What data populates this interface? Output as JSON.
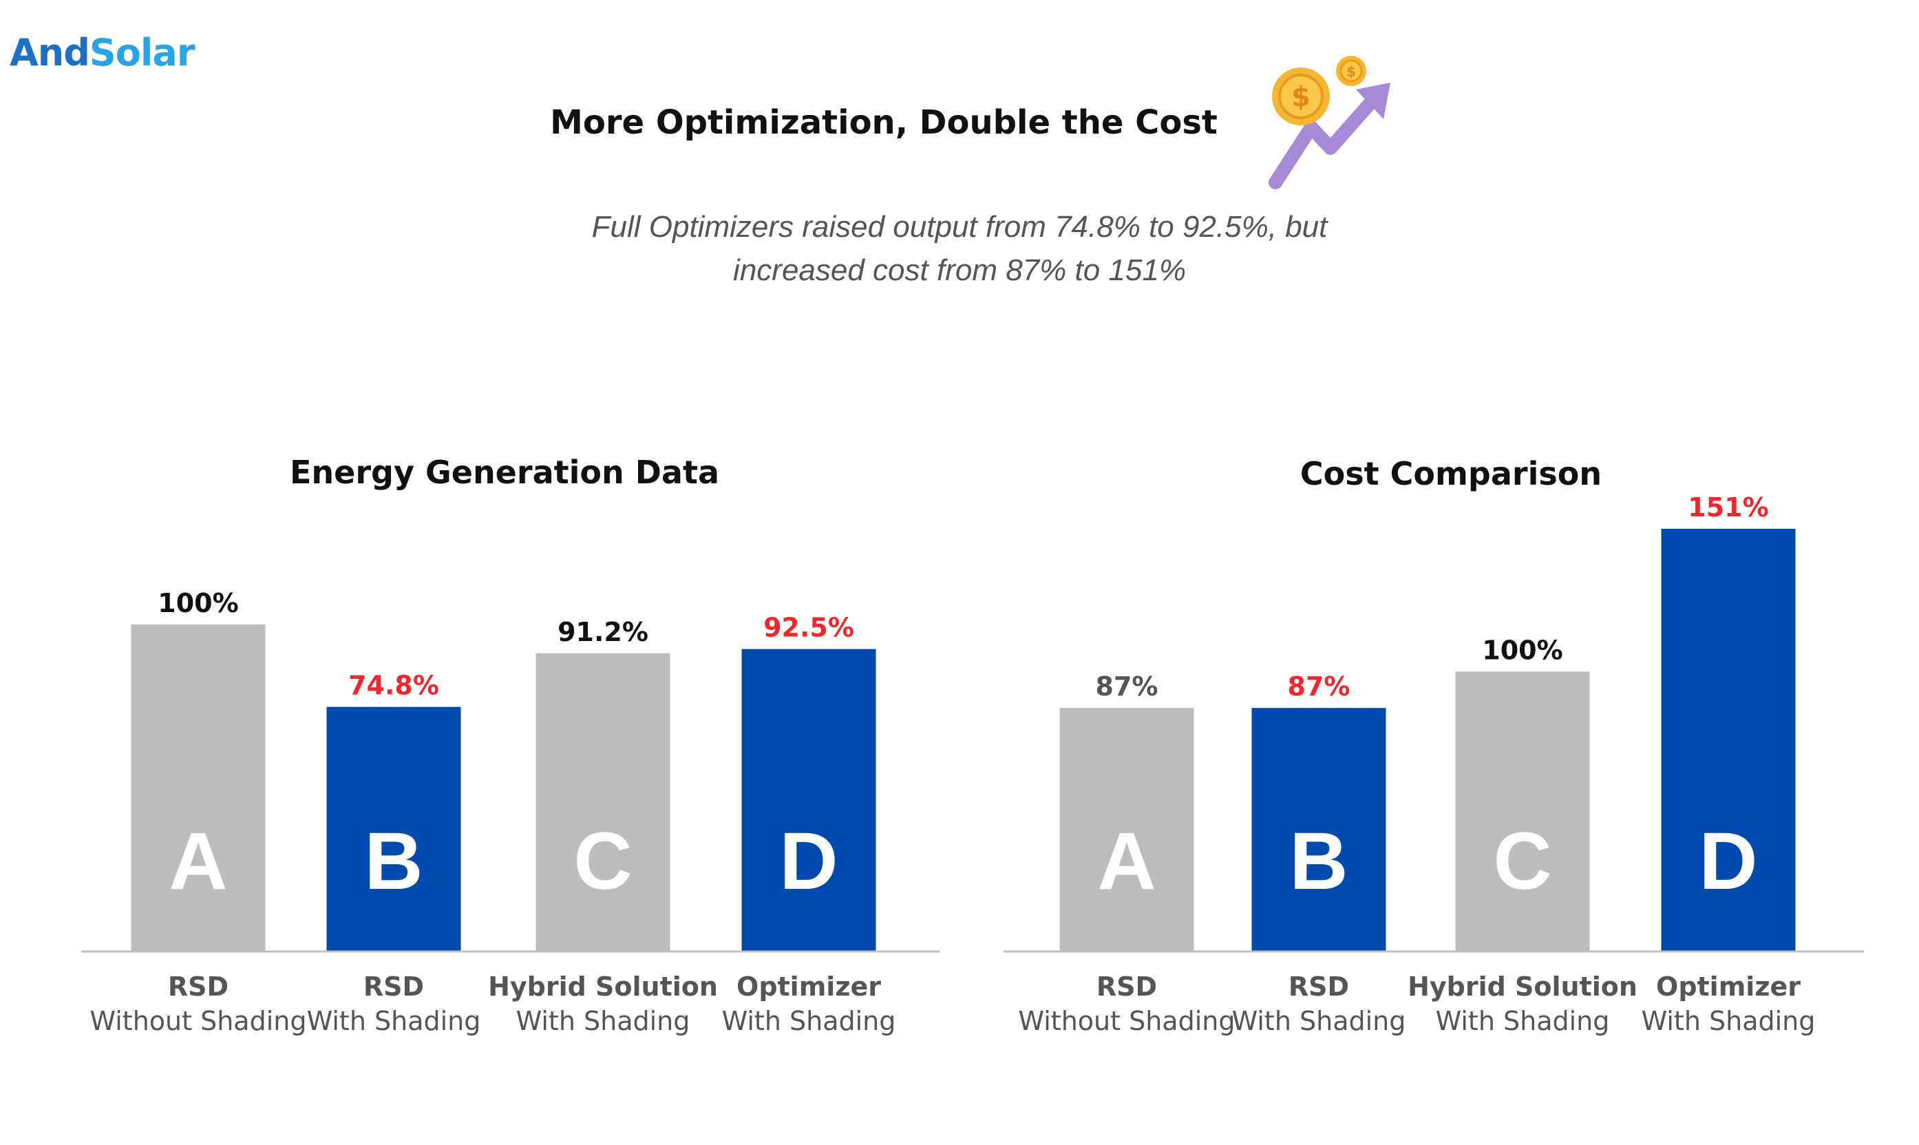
{
  "logo": {
    "part1": "And",
    "part2": "Solar"
  },
  "header": {
    "title": "More Optimization, Double the Cost",
    "subtitle_line1": "Full Optimizers raised output from 74.8% to 92.5%, but",
    "subtitle_line2": "increased cost from 87% to 151%"
  },
  "icons": {
    "title_icon": "money-growth-arrow-icon"
  },
  "colors": {
    "gray": "#bdbdbd",
    "blue": "#004aad",
    "red_label": "#f0282d",
    "dark_label": "#111111",
    "gray_label": "#555555",
    "axis": "#bfbfbf"
  },
  "chart_data": [
    {
      "type": "bar",
      "title": "Energy Generation Data",
      "categories": [
        {
          "letter": "A",
          "name": "RSD",
          "sub": "Without Shading",
          "value": 100,
          "label": "100%",
          "color": "gray",
          "label_color": "dark"
        },
        {
          "letter": "B",
          "name": "RSD",
          "sub": "With Shading",
          "value": 74.8,
          "label": "74.8%",
          "color": "blue",
          "label_color": "red"
        },
        {
          "letter": "C",
          "name": "Hybrid Solution",
          "sub": "With Shading",
          "value": 91.2,
          "label": "91.2%",
          "color": "gray",
          "label_color": "dark"
        },
        {
          "letter": "D",
          "name": "Optimizer",
          "sub": "With Shading",
          "value": 92.5,
          "label": "92.5%",
          "color": "blue",
          "label_color": "red"
        }
      ],
      "ylim": [
        0,
        100
      ]
    },
    {
      "type": "bar",
      "title": "Cost Comparison",
      "categories": [
        {
          "letter": "A",
          "name": "RSD",
          "sub": "Without Shading",
          "value": 87,
          "label": "87%",
          "color": "gray",
          "label_color": "gray"
        },
        {
          "letter": "B",
          "name": "RSD",
          "sub": "With Shading",
          "value": 87,
          "label": "87%",
          "color": "blue",
          "label_color": "red"
        },
        {
          "letter": "C",
          "name": "Hybrid Solution",
          "sub": "With Shading",
          "value": 100,
          "label": "100%",
          "color": "gray",
          "label_color": "dark"
        },
        {
          "letter": "D",
          "name": "Optimizer",
          "sub": "With Shading",
          "value": 151,
          "label": "151%",
          "color": "blue",
          "label_color": "red"
        }
      ],
      "ylim": [
        0,
        151
      ]
    }
  ]
}
